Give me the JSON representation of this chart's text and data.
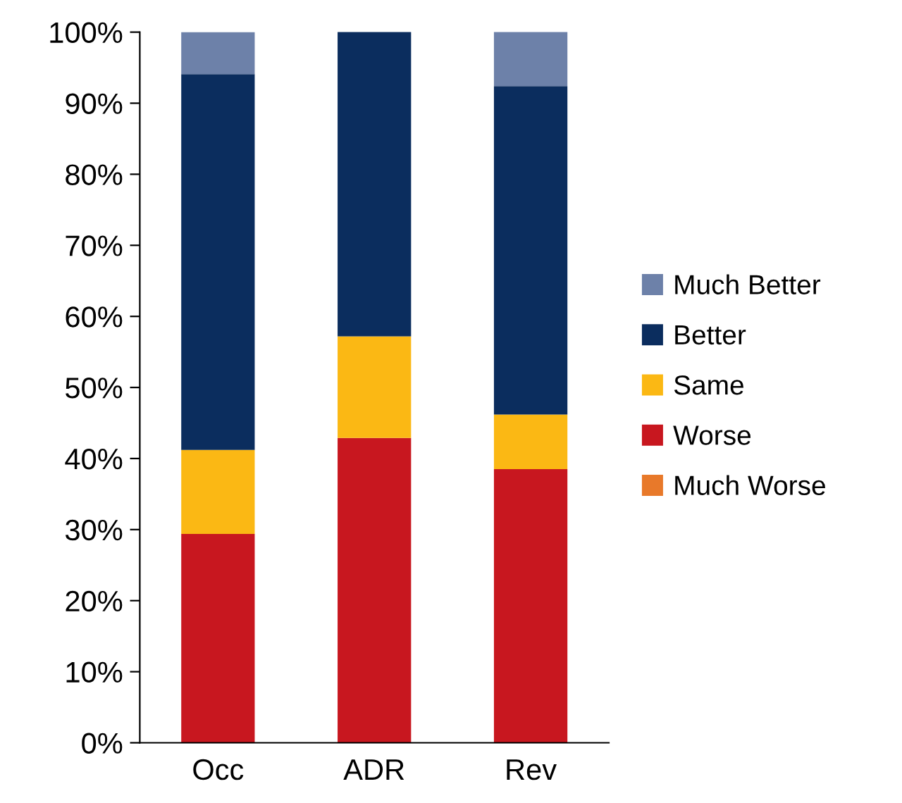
{
  "chart_data": {
    "type": "bar",
    "stacked": true,
    "categories": [
      "Occ",
      "ADR",
      "Rev"
    ],
    "series": [
      {
        "name": "Much Worse",
        "color": "#e8792a",
        "values": [
          0,
          0,
          0
        ]
      },
      {
        "name": "Worse",
        "color": "#c8171f",
        "values": [
          29.4,
          42.9,
          38.5
        ]
      },
      {
        "name": "Same",
        "color": "#fbb814",
        "values": [
          11.8,
          14.3,
          7.7
        ]
      },
      {
        "name": "Better",
        "color": "#0b2d5e",
        "values": [
          52.9,
          42.9,
          46.2
        ]
      },
      {
        "name": "Much Better",
        "color": "#6d81a9",
        "values": [
          5.9,
          0,
          7.7
        ]
      }
    ],
    "ylim": [
      0,
      100
    ],
    "yticks": [
      {
        "value": 0,
        "label": "0%"
      },
      {
        "value": 10,
        "label": "10%"
      },
      {
        "value": 20,
        "label": "20%"
      },
      {
        "value": 30,
        "label": "30%"
      },
      {
        "value": 40,
        "label": "40%"
      },
      {
        "value": 50,
        "label": "50%"
      },
      {
        "value": 60,
        "label": "60%"
      },
      {
        "value": 70,
        "label": "70%"
      },
      {
        "value": 80,
        "label": "80%"
      },
      {
        "value": 90,
        "label": "90%"
      },
      {
        "value": 100,
        "label": "100%"
      }
    ],
    "grid": false,
    "legend": "right"
  }
}
